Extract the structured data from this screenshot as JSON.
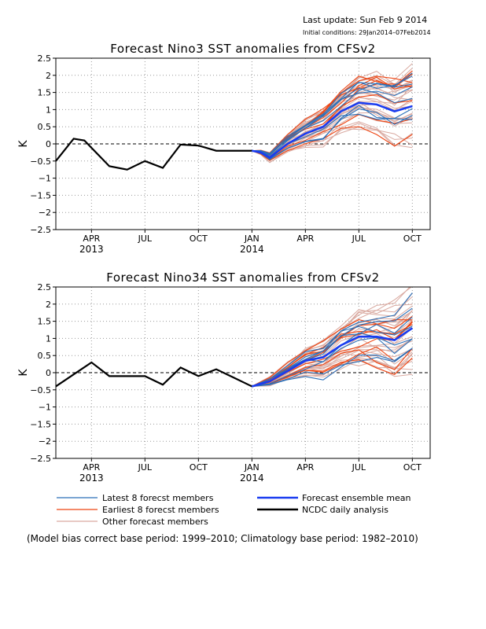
{
  "header": {
    "last_update": "Last update: Sun Feb 9 2014",
    "initial_conditions": "Initial conditions: 29Jan2014–07Feb2014"
  },
  "legend": [
    {
      "label": "Latest 8 forecst members",
      "color": "#2a6fb8"
    },
    {
      "label": "Earliest 8 forecst members",
      "color": "#ee4411"
    },
    {
      "label": "Other forecast members",
      "color": "#d9a9a0"
    },
    {
      "label": "Forecast ensemble mean",
      "color": "#1a3cf0"
    },
    {
      "label": "NCDC daily analysis",
      "color": "#000000"
    }
  ],
  "footnote": "(Model bias correct base period: 1999–2010; Climatology base period: 1982–2010)",
  "chart_data": [
    {
      "type": "line",
      "title": "Forecast Nino3 SST anomalies from CFSv2",
      "ylabel": "K",
      "ylim": [
        -2.5,
        2.5
      ],
      "yticks": [
        "2.5",
        "2",
        "1.5",
        "1",
        "0.5",
        "0",
        "−0.5",
        "−1",
        "−1.5",
        "−2",
        "−2.5"
      ],
      "xlim": [
        0,
        21
      ],
      "xticks": [
        {
          "x": 2,
          "label": "APR",
          "year": "2013"
        },
        {
          "x": 5,
          "label": "JUL",
          "year": ""
        },
        {
          "x": 8,
          "label": "OCT",
          "year": ""
        },
        {
          "x": 11,
          "label": "JAN",
          "year": "2014"
        },
        {
          "x": 14,
          "label": "APR",
          "year": ""
        },
        {
          "x": 17,
          "label": "JUL",
          "year": ""
        },
        {
          "x": 20,
          "label": "OCT",
          "year": ""
        }
      ],
      "grid": true,
      "zero_line": "dashed",
      "series": [
        {
          "name": "NCDC daily analysis",
          "role": "obs",
          "x": [
            0,
            1,
            1.6,
            3,
            4,
            5,
            6,
            7,
            8,
            9,
            10,
            11
          ],
          "y": [
            -0.5,
            0.15,
            0.1,
            -0.65,
            -0.75,
            -0.5,
            -0.7,
            -0.02,
            -0.05,
            -0.2,
            -0.2,
            -0.2
          ]
        },
        {
          "name": "Forecast ensemble mean",
          "role": "mean",
          "x": [
            11,
            11.5,
            12,
            13,
            14,
            15,
            16,
            17,
            18,
            19,
            20
          ],
          "y": [
            -0.2,
            -0.25,
            -0.4,
            0.0,
            0.3,
            0.5,
            0.95,
            1.2,
            1.15,
            0.95,
            1.1
          ]
        }
      ]
    },
    {
      "type": "line",
      "title": "Forecast Nino34 SST anomalies from CFSv2",
      "ylabel": "K",
      "ylim": [
        -2.5,
        2.5
      ],
      "yticks": [
        "2.5",
        "2",
        "1.5",
        "1",
        "0.5",
        "0",
        "−0.5",
        "−1",
        "−1.5",
        "−2",
        "−2.5"
      ],
      "xlim": [
        0,
        21
      ],
      "xticks": [
        {
          "x": 2,
          "label": "APR",
          "year": "2013"
        },
        {
          "x": 5,
          "label": "JUL",
          "year": ""
        },
        {
          "x": 8,
          "label": "OCT",
          "year": ""
        },
        {
          "x": 11,
          "label": "JAN",
          "year": "2014"
        },
        {
          "x": 14,
          "label": "APR",
          "year": ""
        },
        {
          "x": 17,
          "label": "JUL",
          "year": ""
        },
        {
          "x": 20,
          "label": "OCT",
          "year": ""
        }
      ],
      "grid": true,
      "zero_line": "dashed",
      "series": [
        {
          "name": "NCDC daily analysis",
          "role": "obs",
          "x": [
            0,
            1,
            2,
            3,
            4,
            5,
            6,
            7,
            8,
            9,
            10,
            11
          ],
          "y": [
            -0.4,
            -0.05,
            0.3,
            -0.1,
            -0.1,
            -0.1,
            -0.35,
            0.15,
            -0.1,
            0.1,
            -0.15,
            -0.4
          ]
        },
        {
          "name": "Forecast ensemble mean",
          "role": "mean",
          "x": [
            11,
            12,
            13,
            14,
            15,
            16,
            17,
            18,
            19,
            20
          ],
          "y": [
            -0.4,
            -0.25,
            0.05,
            0.35,
            0.45,
            0.8,
            1.05,
            1.05,
            0.95,
            1.3
          ]
        }
      ]
    }
  ]
}
